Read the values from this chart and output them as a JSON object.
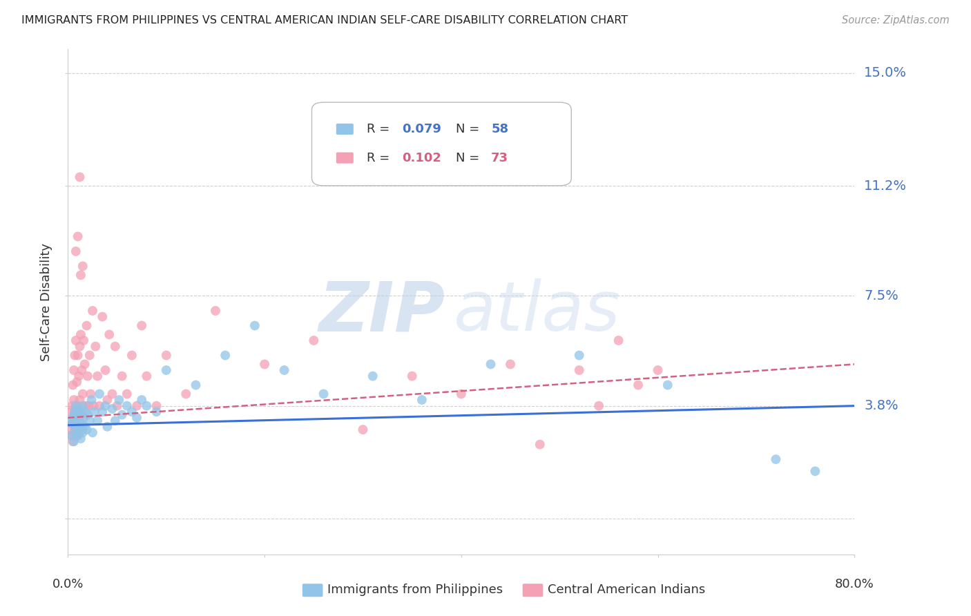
{
  "title": "IMMIGRANTS FROM PHILIPPINES VS CENTRAL AMERICAN INDIAN SELF-CARE DISABILITY CORRELATION CHART",
  "source": "Source: ZipAtlas.com",
  "ylabel": "Self-Care Disability",
  "yticks": [
    0.0,
    0.038,
    0.075,
    0.112,
    0.15
  ],
  "ytick_labels": [
    "",
    "3.8%",
    "7.5%",
    "11.2%",
    "15.0%"
  ],
  "xlim": [
    0.0,
    0.8
  ],
  "ylim": [
    -0.012,
    0.158
  ],
  "watermark_zip": "ZIP",
  "watermark_atlas": "atlas",
  "color_blue": "#91c4e8",
  "color_pink": "#f4a0b5",
  "color_blue_line": "#3a6fd8",
  "color_pink_line": "#d46080",
  "phil_line_x0": 0.0,
  "phil_line_x1": 0.8,
  "phil_line_y0": 0.0315,
  "phil_line_y1": 0.038,
  "ca_line_x0": 0.0,
  "ca_line_x1": 0.8,
  "ca_line_y0": 0.034,
  "ca_line_y1": 0.052,
  "phil_x": [
    0.003,
    0.004,
    0.005,
    0.006,
    0.006,
    0.007,
    0.007,
    0.008,
    0.008,
    0.009,
    0.009,
    0.01,
    0.01,
    0.011,
    0.011,
    0.012,
    0.013,
    0.013,
    0.014,
    0.015,
    0.015,
    0.016,
    0.017,
    0.018,
    0.019,
    0.02,
    0.022,
    0.024,
    0.025,
    0.027,
    0.03,
    0.032,
    0.035,
    0.038,
    0.04,
    0.045,
    0.048,
    0.052,
    0.055,
    0.06,
    0.065,
    0.07,
    0.075,
    0.08,
    0.09,
    0.1,
    0.13,
    0.16,
    0.19,
    0.22,
    0.26,
    0.31,
    0.36,
    0.43,
    0.52,
    0.61,
    0.72,
    0.76
  ],
  "phil_y": [
    0.033,
    0.028,
    0.032,
    0.035,
    0.026,
    0.03,
    0.036,
    0.032,
    0.038,
    0.028,
    0.034,
    0.031,
    0.037,
    0.029,
    0.035,
    0.033,
    0.027,
    0.036,
    0.032,
    0.029,
    0.038,
    0.034,
    0.031,
    0.036,
    0.03,
    0.035,
    0.033,
    0.04,
    0.029,
    0.036,
    0.033,
    0.042,
    0.036,
    0.038,
    0.031,
    0.037,
    0.033,
    0.04,
    0.035,
    0.038,
    0.036,
    0.034,
    0.04,
    0.038,
    0.036,
    0.05,
    0.045,
    0.055,
    0.065,
    0.05,
    0.042,
    0.048,
    0.04,
    0.052,
    0.055,
    0.045,
    0.02,
    0.016
  ],
  "ca_x": [
    0.002,
    0.003,
    0.003,
    0.004,
    0.004,
    0.005,
    0.005,
    0.005,
    0.006,
    0.006,
    0.006,
    0.007,
    0.007,
    0.007,
    0.008,
    0.008,
    0.008,
    0.009,
    0.009,
    0.01,
    0.01,
    0.01,
    0.011,
    0.011,
    0.012,
    0.012,
    0.013,
    0.014,
    0.014,
    0.015,
    0.015,
    0.016,
    0.017,
    0.018,
    0.019,
    0.02,
    0.021,
    0.022,
    0.023,
    0.025,
    0.026,
    0.028,
    0.03,
    0.032,
    0.035,
    0.038,
    0.04,
    0.042,
    0.045,
    0.048,
    0.05,
    0.055,
    0.06,
    0.065,
    0.07,
    0.075,
    0.08,
    0.09,
    0.1,
    0.12,
    0.15,
    0.2,
    0.25,
    0.3,
    0.35,
    0.4,
    0.45,
    0.48,
    0.52,
    0.54,
    0.56,
    0.58,
    0.6
  ],
  "ca_y": [
    0.03,
    0.036,
    0.028,
    0.032,
    0.038,
    0.034,
    0.045,
    0.026,
    0.04,
    0.032,
    0.05,
    0.036,
    0.028,
    0.055,
    0.038,
    0.03,
    0.06,
    0.034,
    0.046,
    0.038,
    0.028,
    0.055,
    0.035,
    0.048,
    0.04,
    0.058,
    0.062,
    0.035,
    0.05,
    0.042,
    0.03,
    0.06,
    0.052,
    0.038,
    0.065,
    0.048,
    0.038,
    0.055,
    0.042,
    0.07,
    0.038,
    0.058,
    0.048,
    0.038,
    0.068,
    0.05,
    0.04,
    0.062,
    0.042,
    0.058,
    0.038,
    0.048,
    0.042,
    0.055,
    0.038,
    0.065,
    0.048,
    0.038,
    0.055,
    0.042,
    0.07,
    0.052,
    0.06,
    0.03,
    0.048,
    0.042,
    0.052,
    0.025,
    0.05,
    0.038,
    0.06,
    0.045,
    0.05
  ],
  "legend_blue_label": "R = 0.079   N = 58",
  "legend_pink_label": "R = 0.102   N = 73",
  "bottom_label_blue": "Immigrants from Philippines",
  "bottom_label_pink": "Central American Indians"
}
